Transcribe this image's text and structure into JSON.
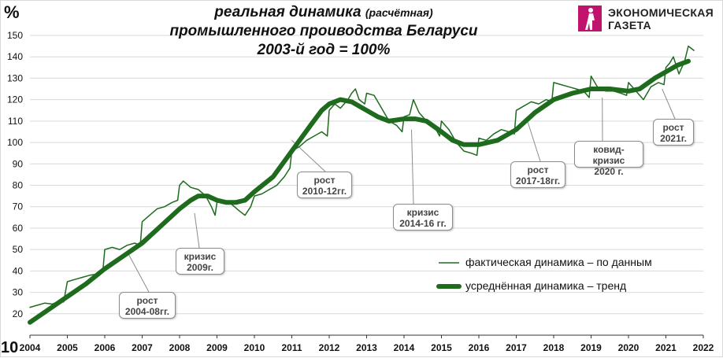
{
  "header": {
    "y_unit": "%",
    "title_line1_main": "реальная динамика ",
    "title_line1_small": "(расчётная)",
    "title_line2": "промышленного проиводства Беларуси",
    "title_line3": "2003-й год = 100%"
  },
  "logo": {
    "line1": "ЭКОНОМИЧЕСКАЯ",
    "line2": "ГАЗЕТА",
    "color": "#c0136b"
  },
  "callouts": {
    "growth_2004": "рост\n2004-08гг.",
    "crisis_2009": "кризис\n2009г.",
    "growth_2010": "рост\n2010-12гг.",
    "crisis_2014": "кризис\n2014-16  гг.",
    "growth_2017": "рост\n2017-18гг.",
    "covid_2020": "ковид-кризис\n2020 г.",
    "growth_2021": "рост\n2021г."
  },
  "legend": {
    "actual": "фактическая динамика – по данным",
    "trend": "усреднённая динамика – тренд"
  },
  "chart_data": {
    "type": "line",
    "title": "реальная динамика (расчётная) промышленного проиводства Беларуси 2003-й год = 100%",
    "xlabel": "",
    "ylabel": "%",
    "xlim": [
      2004,
      2022
    ],
    "ylim": [
      10,
      150
    ],
    "x_ticks": [
      "2004",
      "2005",
      "2006",
      "2007",
      "2008",
      "2009",
      "2010",
      "2011",
      "2012",
      "2013",
      "2014",
      "2015",
      "2016",
      "2017",
      "2018",
      "2019",
      "2020",
      "2021",
      "2022"
    ],
    "y_ticks": [
      "10",
      "20",
      "30",
      "40",
      "50",
      "60",
      "70",
      "80",
      "90",
      "100",
      "110",
      "120",
      "130",
      "140",
      "150"
    ],
    "y_tick_first_label": "10",
    "grid": "horizontal",
    "line_color": "#1e6b1e",
    "series": [
      {
        "name": "фактическая динамика – по данным",
        "style": "thin",
        "points": [
          [
            2004.0,
            23
          ],
          [
            2004.2,
            24
          ],
          [
            2004.4,
            25
          ],
          [
            2004.6,
            24.5
          ],
          [
            2004.8,
            26
          ],
          [
            2004.9,
            25.5
          ],
          [
            2005.0,
            35
          ],
          [
            2005.2,
            36
          ],
          [
            2005.4,
            37
          ],
          [
            2005.6,
            38
          ],
          [
            2005.8,
            38.5
          ],
          [
            2005.95,
            40
          ],
          [
            2006.0,
            50
          ],
          [
            2006.2,
            51
          ],
          [
            2006.4,
            50
          ],
          [
            2006.6,
            52
          ],
          [
            2006.8,
            53
          ],
          [
            2006.95,
            52
          ],
          [
            2007.0,
            63
          ],
          [
            2007.2,
            66
          ],
          [
            2007.4,
            69
          ],
          [
            2007.6,
            70
          ],
          [
            2007.8,
            72
          ],
          [
            2007.95,
            73
          ],
          [
            2008.0,
            80
          ],
          [
            2008.1,
            82
          ],
          [
            2008.3,
            79
          ],
          [
            2008.5,
            78
          ],
          [
            2008.7,
            75
          ],
          [
            2008.85,
            70
          ],
          [
            2008.95,
            66
          ],
          [
            2009.0,
            72
          ],
          [
            2009.2,
            73
          ],
          [
            2009.4,
            71
          ],
          [
            2009.6,
            68
          ],
          [
            2009.75,
            66
          ],
          [
            2009.9,
            70
          ],
          [
            2010.0,
            75
          ],
          [
            2010.2,
            76
          ],
          [
            2010.4,
            78
          ],
          [
            2010.6,
            80
          ],
          [
            2010.8,
            84
          ],
          [
            2010.95,
            88
          ],
          [
            2011.0,
            96
          ],
          [
            2011.2,
            98
          ],
          [
            2011.4,
            101
          ],
          [
            2011.6,
            103
          ],
          [
            2011.8,
            105
          ],
          [
            2011.95,
            103
          ],
          [
            2012.0,
            115
          ],
          [
            2012.15,
            118
          ],
          [
            2012.3,
            116
          ],
          [
            2012.5,
            120
          ],
          [
            2012.6,
            123
          ],
          [
            2012.7,
            125
          ],
          [
            2012.8,
            120
          ],
          [
            2012.95,
            118
          ],
          [
            2013.0,
            123
          ],
          [
            2013.2,
            122
          ],
          [
            2013.4,
            116
          ],
          [
            2013.6,
            110
          ],
          [
            2013.8,
            108
          ],
          [
            2013.95,
            105
          ],
          [
            2014.0,
            112
          ],
          [
            2014.15,
            113
          ],
          [
            2014.25,
            120
          ],
          [
            2014.4,
            114
          ],
          [
            2014.6,
            110
          ],
          [
            2014.8,
            108
          ],
          [
            2014.95,
            103
          ],
          [
            2015.0,
            110
          ],
          [
            2015.2,
            106
          ],
          [
            2015.4,
            100
          ],
          [
            2015.6,
            96
          ],
          [
            2015.8,
            95
          ],
          [
            2015.95,
            94
          ],
          [
            2016.0,
            102
          ],
          [
            2016.2,
            101
          ],
          [
            2016.4,
            104
          ],
          [
            2016.6,
            106
          ],
          [
            2016.8,
            105
          ],
          [
            2016.95,
            104
          ],
          [
            2017.0,
            115
          ],
          [
            2017.2,
            117
          ],
          [
            2017.4,
            119
          ],
          [
            2017.6,
            118
          ],
          [
            2017.8,
            120
          ],
          [
            2017.95,
            119
          ],
          [
            2018.0,
            128
          ],
          [
            2018.2,
            127
          ],
          [
            2018.4,
            126
          ],
          [
            2018.6,
            125
          ],
          [
            2018.8,
            124
          ],
          [
            2018.95,
            121
          ],
          [
            2019.0,
            131
          ],
          [
            2019.2,
            125
          ],
          [
            2019.4,
            124
          ],
          [
            2019.6,
            124
          ],
          [
            2019.8,
            123
          ],
          [
            2019.95,
            122
          ],
          [
            2020.0,
            128
          ],
          [
            2020.2,
            124
          ],
          [
            2020.4,
            120
          ],
          [
            2020.6,
            126
          ],
          [
            2020.8,
            128
          ],
          [
            2020.95,
            127
          ],
          [
            2021.0,
            135
          ],
          [
            2021.1,
            137
          ],
          [
            2021.2,
            140
          ],
          [
            2021.35,
            132
          ],
          [
            2021.5,
            138
          ],
          [
            2021.6,
            145
          ],
          [
            2021.75,
            143
          ]
        ]
      },
      {
        "name": "усреднённая динамика – тренд",
        "style": "thick",
        "points": [
          [
            2004.0,
            16
          ],
          [
            2004.5,
            22
          ],
          [
            2005.0,
            28
          ],
          [
            2005.5,
            34
          ],
          [
            2006.0,
            41
          ],
          [
            2006.5,
            47
          ],
          [
            2007.0,
            53
          ],
          [
            2007.5,
            61
          ],
          [
            2008.0,
            69
          ],
          [
            2008.3,
            73
          ],
          [
            2008.5,
            75
          ],
          [
            2008.75,
            75
          ],
          [
            2009.0,
            73
          ],
          [
            2009.25,
            72
          ],
          [
            2009.5,
            72
          ],
          [
            2009.75,
            73
          ],
          [
            2010.0,
            77
          ],
          [
            2010.5,
            84
          ],
          [
            2011.0,
            96
          ],
          [
            2011.5,
            108
          ],
          [
            2011.8,
            115
          ],
          [
            2012.0,
            118
          ],
          [
            2012.3,
            120
          ],
          [
            2012.6,
            119
          ],
          [
            2013.0,
            115
          ],
          [
            2013.3,
            112
          ],
          [
            2013.6,
            110
          ],
          [
            2014.0,
            111
          ],
          [
            2014.3,
            111
          ],
          [
            2014.6,
            110
          ],
          [
            2015.0,
            105
          ],
          [
            2015.3,
            101
          ],
          [
            2015.6,
            99
          ],
          [
            2016.0,
            99
          ],
          [
            2016.5,
            101
          ],
          [
            2017.0,
            106
          ],
          [
            2017.5,
            114
          ],
          [
            2018.0,
            120
          ],
          [
            2018.5,
            123
          ],
          [
            2019.0,
            125
          ],
          [
            2019.5,
            125
          ],
          [
            2020.0,
            124
          ],
          [
            2020.3,
            125
          ],
          [
            2020.7,
            130
          ],
          [
            2021.0,
            133
          ],
          [
            2021.3,
            136
          ],
          [
            2021.6,
            138
          ]
        ]
      }
    ]
  }
}
